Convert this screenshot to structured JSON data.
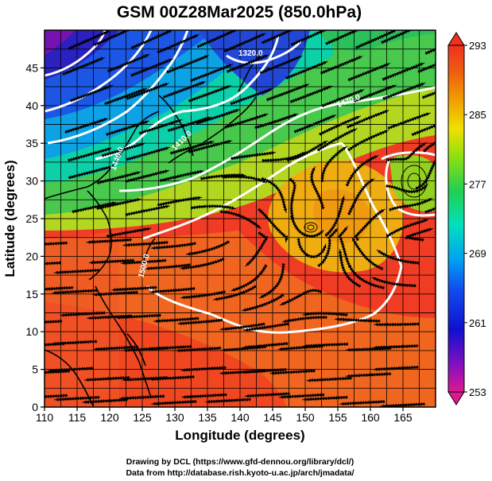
{
  "figure": {
    "title": "GSM 00Z28Mar2025 (850.0hPa)",
    "xlabel": "Longitude (degrees)",
    "ylabel": "Latitude  (degrees)",
    "credit_line1": "Drawing by DCL (https://www.gfd-dennou.org/library/dcl/)",
    "credit_line2": "Data from http://database.rish.kyoto-u.ac.jp/arch/jmadata/"
  },
  "map": {
    "xlim": [
      110,
      170
    ],
    "ylim": [
      0,
      50
    ],
    "x_ticks": [
      "110",
      "115",
      "120",
      "125",
      "130",
      "135",
      "140",
      "145",
      "150",
      "155",
      "160",
      "165"
    ],
    "y_ticks": [
      "0",
      "5",
      "10",
      "15",
      "20",
      "25",
      "30",
      "35",
      "40",
      "45"
    ],
    "contour_labels": [
      "1320.0",
      "1350.0",
      "1380.0",
      "1410.0",
      "1440.0",
      "1470.0",
      "1500.0",
      "1530.0"
    ],
    "colorbar": {
      "min": 253,
      "max": 293,
      "tick_labels": [
        "293",
        "285",
        "277",
        "269",
        "261",
        "253"
      ],
      "colors": [
        "#e01890",
        "#8010c0",
        "#1010d0",
        "#1050f0",
        "#00a0f0",
        "#00e0c0",
        "#20d050",
        "#90e010",
        "#f0e000",
        "#f0a000",
        "#f06010",
        "#f03020"
      ]
    }
  }
}
